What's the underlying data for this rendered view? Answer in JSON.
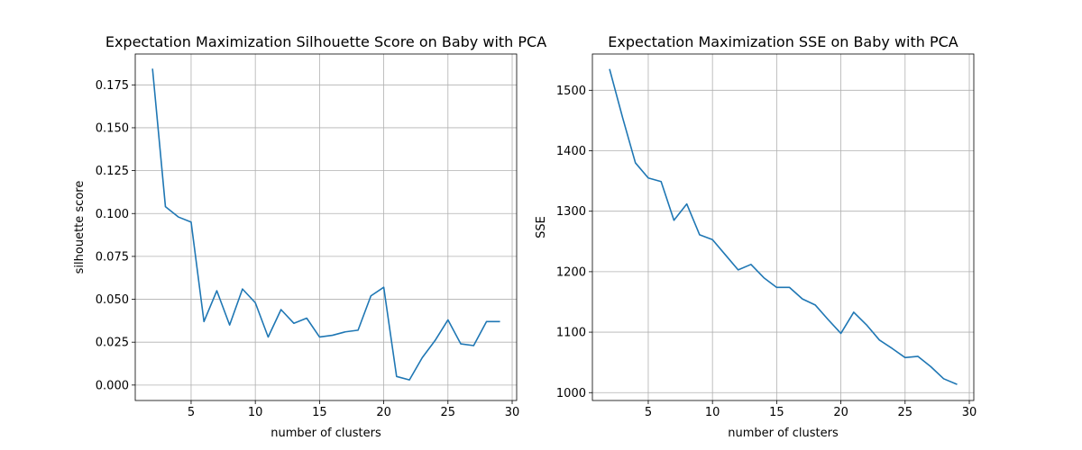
{
  "chart_data": [
    {
      "type": "line",
      "title": "Expectation Maximization Silhouette Score on Baby with PCA",
      "xlabel": "number of clusters",
      "ylabel": "silhouette score",
      "xlim": [
        0.65,
        30.35
      ],
      "ylim": [
        -0.009,
        0.193
      ],
      "xticks": [
        5,
        10,
        15,
        20,
        25,
        30
      ],
      "yticks": [
        0.0,
        0.025,
        0.05,
        0.075,
        0.1,
        0.125,
        0.15,
        0.175
      ],
      "ytick_labels": [
        "0.000",
        "0.025",
        "0.050",
        "0.075",
        "0.100",
        "0.125",
        "0.150",
        "0.175"
      ],
      "xtick_labels": [
        "5",
        "10",
        "15",
        "20",
        "25",
        "30"
      ],
      "grid": true,
      "line_color": "#1f77b4",
      "series": [
        {
          "x": [
            2,
            3,
            4,
            5,
            6,
            7,
            8,
            9,
            10,
            11,
            12,
            13,
            14,
            15,
            16,
            17,
            18,
            19,
            20,
            21,
            22,
            23,
            24,
            25,
            26,
            27,
            28,
            29
          ],
          "values": [
            0.184,
            0.104,
            0.098,
            0.095,
            0.037,
            0.055,
            0.035,
            0.056,
            0.048,
            0.028,
            0.044,
            0.036,
            0.039,
            0.028,
            0.029,
            0.031,
            0.032,
            0.052,
            0.057,
            0.005,
            0.003,
            0.016,
            0.026,
            0.038,
            0.024,
            0.023,
            0.037,
            0.037
          ]
        }
      ]
    },
    {
      "type": "line",
      "title": "Expectation Maximization SSE on Baby with PCA",
      "xlabel": "number of clusters",
      "ylabel": "SSE",
      "xlim": [
        0.65,
        30.35
      ],
      "ylim": [
        987,
        1560
      ],
      "xticks": [
        5,
        10,
        15,
        20,
        25,
        30
      ],
      "yticks": [
        1000,
        1100,
        1200,
        1300,
        1400,
        1500
      ],
      "ytick_labels": [
        "1000",
        "1100",
        "1200",
        "1300",
        "1400",
        "1500"
      ],
      "xtick_labels": [
        "5",
        "10",
        "15",
        "20",
        "25",
        "30"
      ],
      "grid": true,
      "line_color": "#1f77b4",
      "series": [
        {
          "x": [
            2,
            3,
            4,
            5,
            6,
            7,
            8,
            9,
            10,
            11,
            12,
            13,
            14,
            15,
            16,
            17,
            18,
            19,
            20,
            21,
            22,
            23,
            24,
            25,
            26,
            27,
            28,
            29
          ],
          "values": [
            1534,
            1455,
            1380,
            1355,
            1349,
            1285,
            1312,
            1261,
            1253,
            1228,
            1203,
            1212,
            1190,
            1174,
            1174,
            1155,
            1145,
            1121,
            1098,
            1133,
            1112,
            1087,
            1073,
            1058,
            1060,
            1043,
            1023,
            1014
          ]
        }
      ]
    }
  ]
}
